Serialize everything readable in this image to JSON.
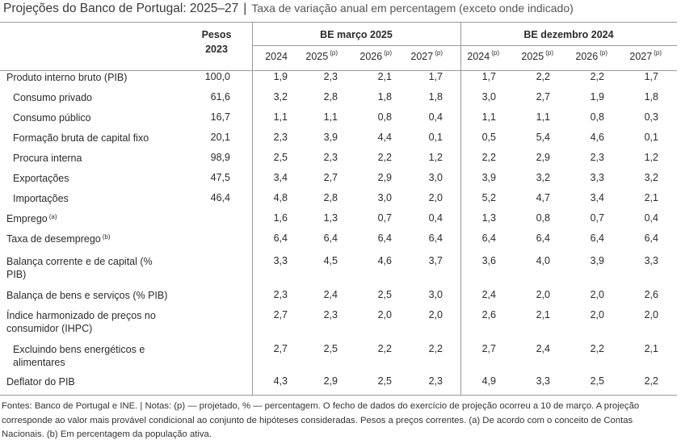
{
  "title": {
    "main": "Projeções do Banco de Portugal: 2025–27",
    "separator": "|",
    "subtitle": "Taxa de variação anual em percentagem (exceto onde indicado)"
  },
  "header": {
    "weights_line1": "Pesos",
    "weights_line2": "2023",
    "group_mar": "BE março 2025",
    "group_dec": "BE dezembro 2024",
    "mar_years": [
      {
        "year": "2024",
        "note": ""
      },
      {
        "year": "2025",
        "note": "(p)"
      },
      {
        "year": "2026",
        "note": "(p)"
      },
      {
        "year": "2027",
        "note": "(p)"
      }
    ],
    "dec_years": [
      {
        "year": "2024",
        "note": "(p)"
      },
      {
        "year": "2025",
        "note": "(p)"
      },
      {
        "year": "2026",
        "note": "(p)"
      },
      {
        "year": "2027",
        "note": "(p)"
      }
    ]
  },
  "rows": [
    {
      "label": "Produto interno bruto (PIB)",
      "note": "",
      "weight": "100,0",
      "mar": [
        "1,9",
        "2,3",
        "2,1",
        "1,7"
      ],
      "dec": [
        "1,7",
        "2,2",
        "2,2",
        "1,7"
      ]
    },
    {
      "label": "Consumo privado",
      "note": "",
      "weight": "61,6",
      "mar": [
        "3,2",
        "2,8",
        "1,8",
        "1,8"
      ],
      "dec": [
        "3,0",
        "2,7",
        "1,9",
        "1,8"
      ]
    },
    {
      "label": "Consumo público",
      "note": "",
      "weight": "16,7",
      "mar": [
        "1,1",
        "1,1",
        "0,8",
        "0,4"
      ],
      "dec": [
        "1,1",
        "1,1",
        "0,8",
        "0,3"
      ]
    },
    {
      "label": "Formação bruta de capital fixo",
      "note": "",
      "weight": "20,1",
      "mar": [
        "2,3",
        "3,9",
        "4,4",
        "0,1"
      ],
      "dec": [
        "0,5",
        "5,4",
        "4,6",
        "0,1"
      ]
    },
    {
      "label": "Procura interna",
      "note": "",
      "weight": "98,9",
      "mar": [
        "2,5",
        "2,3",
        "2,2",
        "1,2"
      ],
      "dec": [
        "2,2",
        "2,9",
        "2,3",
        "1,2"
      ]
    },
    {
      "label": "Exportações",
      "note": "",
      "weight": "47,5",
      "mar": [
        "3,4",
        "2,7",
        "2,9",
        "3,0"
      ],
      "dec": [
        "3,9",
        "3,2",
        "3,3",
        "3,2"
      ]
    },
    {
      "label": "Importações",
      "note": "",
      "weight": "46,4",
      "mar": [
        "4,8",
        "2,8",
        "3,0",
        "2,0"
      ],
      "dec": [
        "5,2",
        "4,7",
        "3,4",
        "2,1"
      ]
    },
    {
      "label": "Emprego",
      "note": "(a)",
      "weight": "",
      "mar": [
        "1,6",
        "1,3",
        "0,7",
        "0,4"
      ],
      "dec": [
        "1,3",
        "0,8",
        "0,7",
        "0,4"
      ]
    },
    {
      "label": "Taxa de desemprego",
      "note": "(b)",
      "weight": "",
      "mar": [
        "6,4",
        "6,4",
        "6,4",
        "6,4"
      ],
      "dec": [
        "6,4",
        "6,4",
        "6,4",
        "6,4"
      ]
    },
    {
      "label_line1": "Balança corrente e de capital (%",
      "label_line2": "PIB)",
      "weight": "",
      "mar": [
        "3,3",
        "4,5",
        "4,6",
        "3,7"
      ],
      "dec": [
        "3,6",
        "4,0",
        "3,9",
        "3,3"
      ]
    },
    {
      "label": "Balança de bens e serviços (% PIB)",
      "note": "",
      "weight": "",
      "mar": [
        "2,3",
        "2,4",
        "2,5",
        "3,0"
      ],
      "dec": [
        "2,4",
        "2,0",
        "2,0",
        "2,6"
      ]
    },
    {
      "label_line1": "Índice harmonizado de preços no",
      "label_line2": "consumidor (IHPC)",
      "weight": "",
      "mar": [
        "2,7",
        "2,3",
        "2,0",
        "2,0"
      ],
      "dec": [
        "2,6",
        "2,1",
        "2,0",
        "2,0"
      ]
    },
    {
      "label_line1": "Excluindo bens energéticos e",
      "label_line2": "alimentares",
      "weight": "",
      "mar": [
        "2,7",
        "2,5",
        "2,2",
        "2,2"
      ],
      "dec": [
        "2,7",
        "2,4",
        "2,2",
        "2,1"
      ]
    },
    {
      "label": "Deflator do PIB",
      "note": "",
      "weight": "",
      "mar": [
        "4,3",
        "2,9",
        "2,5",
        "2,3"
      ],
      "dec": [
        "4,9",
        "3,3",
        "2,5",
        "2,2"
      ]
    }
  ],
  "footnote": "Fontes: Banco de Portugal e INE. | Notas: (p) — projetado, % — percentagem. O fecho de dados do exercício de projeção ocorreu a 10 de março. A projeção corresponde ao valor mais provável condicional ao conjunto de hipóteses consideradas. Pesos a preços correntes. (a) De acordo com o conceito de Contas Nacionais. (b) Em percentagem da população ativa."
}
